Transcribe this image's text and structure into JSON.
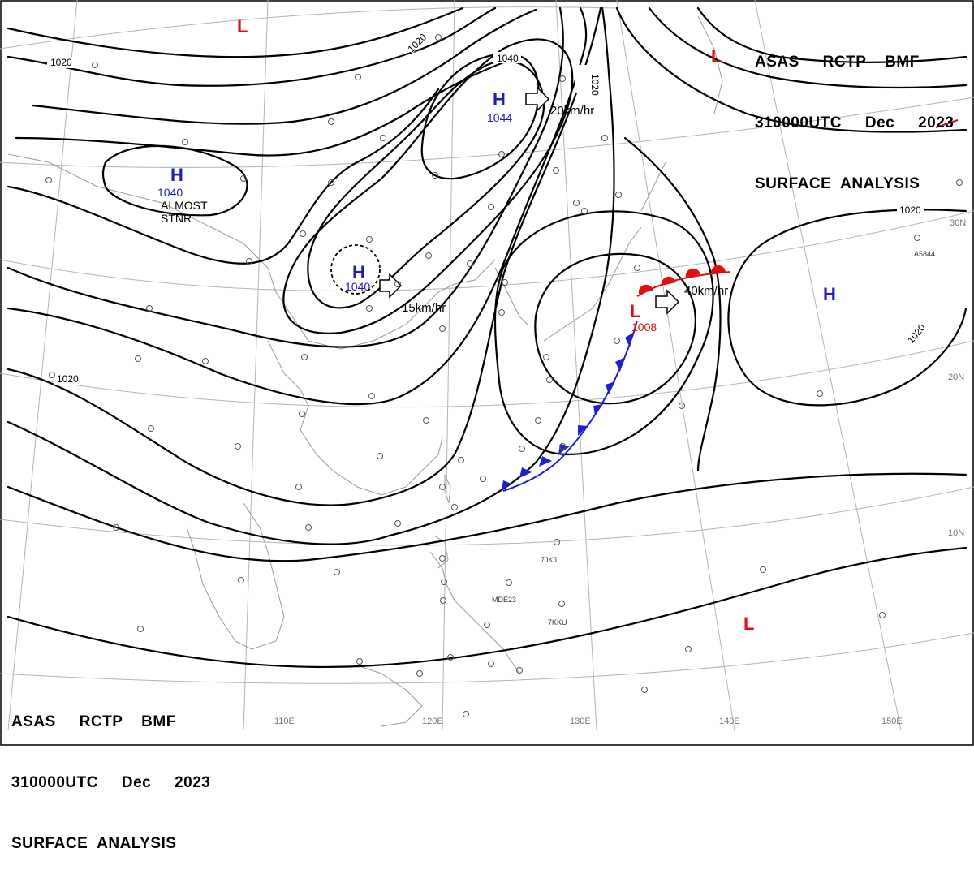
{
  "header": {
    "line1": "ASAS     RCTP    BMF",
    "line2": "310000UTC     Dec     2023",
    "line3": "SURFACE  ANALYSIS"
  },
  "longitude_labels": [
    "110E",
    "120E",
    "130E",
    "140E",
    "150E"
  ],
  "latitude_labels": [
    "30N",
    "20N",
    "10N"
  ],
  "pressure_centers": [
    {
      "type": "H",
      "value": "1040",
      "note": "ALMOST STNR"
    },
    {
      "type": "H",
      "value": "1044"
    },
    {
      "type": "H",
      "value": "1040"
    },
    {
      "type": "H",
      "value": ""
    },
    {
      "type": "L",
      "value": ""
    },
    {
      "type": "L",
      "value": ""
    },
    {
      "type": "L",
      "value": "1008"
    },
    {
      "type": "L",
      "value": ""
    }
  ],
  "motion_labels": [
    "20km/hr",
    "15km/hr",
    "40km/hr"
  ],
  "stationary_note": "ALMOST\nSTNR",
  "isobar_labels": [
    "1020",
    "1020",
    "1040",
    "1020",
    "1020",
    "1020",
    "1020"
  ],
  "station_codes": [
    "7JKJ",
    "MDE23",
    "7KKU",
    "A5844"
  ],
  "colors": {
    "high": "#1e1eb4",
    "low": "#e01010",
    "warm_front": "#e01010",
    "cold_front": "#1f1fcf",
    "isobar": "#000000",
    "coast": "#9a9a9a",
    "grid": "#b0b0b0"
  }
}
